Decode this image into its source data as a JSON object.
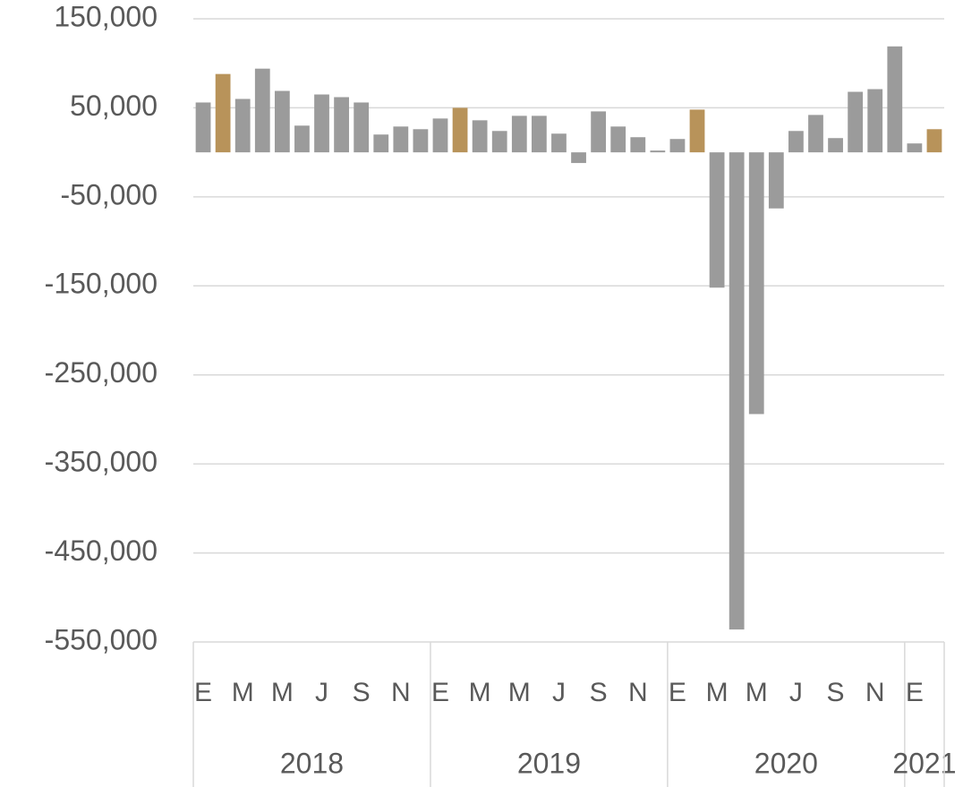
{
  "chart_data": {
    "type": "bar",
    "categories": [
      "E",
      null,
      "M",
      null,
      "M",
      null,
      "J",
      null,
      "S",
      null,
      "N",
      null,
      "E",
      null,
      "M",
      null,
      "M",
      null,
      "J",
      null,
      "S",
      null,
      "N",
      null,
      "E",
      null,
      "M",
      null,
      "M",
      null,
      "J",
      null,
      "S",
      null,
      "N",
      null,
      "E",
      null
    ],
    "groups": [
      {
        "name": "2018",
        "size": 12
      },
      {
        "name": "2019",
        "size": 12
      },
      {
        "name": "2020",
        "size": 12
      },
      {
        "name": "2021",
        "size": 2
      }
    ],
    "values": [
      56000,
      88000,
      60000,
      94000,
      69000,
      30000,
      65000,
      62000,
      56000,
      20000,
      29000,
      26000,
      38000,
      50000,
      36000,
      24000,
      41000,
      41000,
      21000,
      -12000,
      46000,
      29000,
      17000,
      2000,
      15000,
      48000,
      -152000,
      -536000,
      -294000,
      -63000,
      24000,
      42000,
      16000,
      68000,
      71000,
      119000,
      10000,
      26000
    ],
    "colors": [
      "#9b9b9b",
      "#b8935a",
      "#9b9b9b",
      "#9b9b9b",
      "#9b9b9b",
      "#9b9b9b",
      "#9b9b9b",
      "#9b9b9b",
      "#9b9b9b",
      "#9b9b9b",
      "#9b9b9b",
      "#9b9b9b",
      "#9b9b9b",
      "#b8935a",
      "#9b9b9b",
      "#9b9b9b",
      "#9b9b9b",
      "#9b9b9b",
      "#9b9b9b",
      "#9b9b9b",
      "#9b9b9b",
      "#9b9b9b",
      "#9b9b9b",
      "#9b9b9b",
      "#9b9b9b",
      "#b8935a",
      "#9b9b9b",
      "#9b9b9b",
      "#9b9b9b",
      "#9b9b9b",
      "#9b9b9b",
      "#9b9b9b",
      "#9b9b9b",
      "#9b9b9b",
      "#9b9b9b",
      "#9b9b9b",
      "#9b9b9b",
      "#b8935a"
    ],
    "ylim": [
      -550000,
      150000
    ],
    "yticks": [
      {
        "value": -550000,
        "label": "-550,000"
      },
      {
        "value": -450000,
        "label": "-450,000"
      },
      {
        "value": -350000,
        "label": "-350,000"
      },
      {
        "value": -250000,
        "label": "-250,000"
      },
      {
        "value": -150000,
        "label": "-150,000"
      },
      {
        "value": -50000,
        "label": "-50,000"
      },
      {
        "value": 50000,
        "label": "50,000"
      },
      {
        "value": 150000,
        "label": "150,000"
      }
    ],
    "grid": true
  }
}
